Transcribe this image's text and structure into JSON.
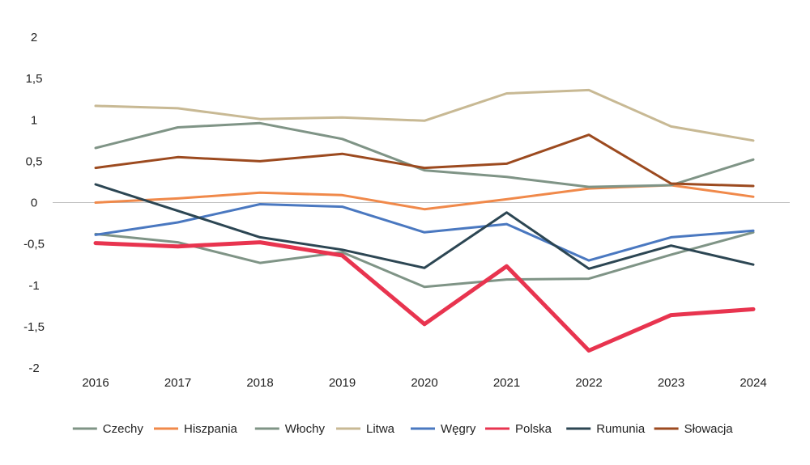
{
  "chart_data": {
    "type": "line",
    "title": "",
    "xlabel": "",
    "ylabel": "",
    "ylim": [
      -2,
      2
    ],
    "yticks": [
      2,
      1.5,
      1,
      0.5,
      0,
      -0.5,
      -1,
      -1.5,
      -2
    ],
    "ytick_labels": [
      "2",
      "1,5",
      "1",
      "0,5",
      "0",
      "-0,5",
      "-1",
      "-1,5",
      "-2"
    ],
    "categories": [
      "2016",
      "2017",
      "2018",
      "2019",
      "2020",
      "2021",
      "2022",
      "2023",
      "2024"
    ],
    "legend_position": "bottom",
    "series": [
      {
        "name": "Czechy",
        "color": "#7f9486",
        "width": 3,
        "values": [
          -0.38,
          -0.48,
          -0.73,
          -0.6,
          -1.02,
          -0.93,
          -0.92,
          -0.63,
          -0.36
        ]
      },
      {
        "name": "Hiszpania",
        "color": "#f0894a",
        "width": 3,
        "values": [
          0.0,
          0.05,
          0.12,
          0.09,
          -0.08,
          0.04,
          0.17,
          0.21,
          0.07
        ]
      },
      {
        "name": "Włochy",
        "color": "#7f9486",
        "width": 3,
        "values": [
          0.66,
          0.91,
          0.96,
          0.77,
          0.39,
          0.31,
          0.19,
          0.21,
          0.52
        ]
      },
      {
        "name": "Litwa",
        "color": "#c8b994",
        "width": 3,
        "values": [
          1.17,
          1.14,
          1.01,
          1.03,
          0.99,
          1.32,
          1.36,
          0.92,
          0.75
        ]
      },
      {
        "name": "Węgry",
        "color": "#4a78c0",
        "width": 3,
        "values": [
          -0.39,
          -0.24,
          -0.02,
          -0.05,
          -0.36,
          -0.26,
          -0.7,
          -0.42,
          -0.34
        ]
      },
      {
        "name": "Polska",
        "color": "#e8344f",
        "width": 5,
        "values": [
          -0.49,
          -0.53,
          -0.48,
          -0.64,
          -1.47,
          -0.77,
          -1.79,
          -1.36,
          -1.29
        ]
      },
      {
        "name": "Rumunia",
        "color": "#2c4653",
        "width": 3,
        "values": [
          0.22,
          -0.1,
          -0.42,
          -0.57,
          -0.79,
          -0.12,
          -0.8,
          -0.52,
          -0.75
        ]
      },
      {
        "name": "Słowacja",
        "color": "#9c4a1f",
        "width": 3,
        "values": [
          0.42,
          0.55,
          0.5,
          0.59,
          0.42,
          0.47,
          0.82,
          0.23,
          0.2
        ]
      }
    ]
  }
}
